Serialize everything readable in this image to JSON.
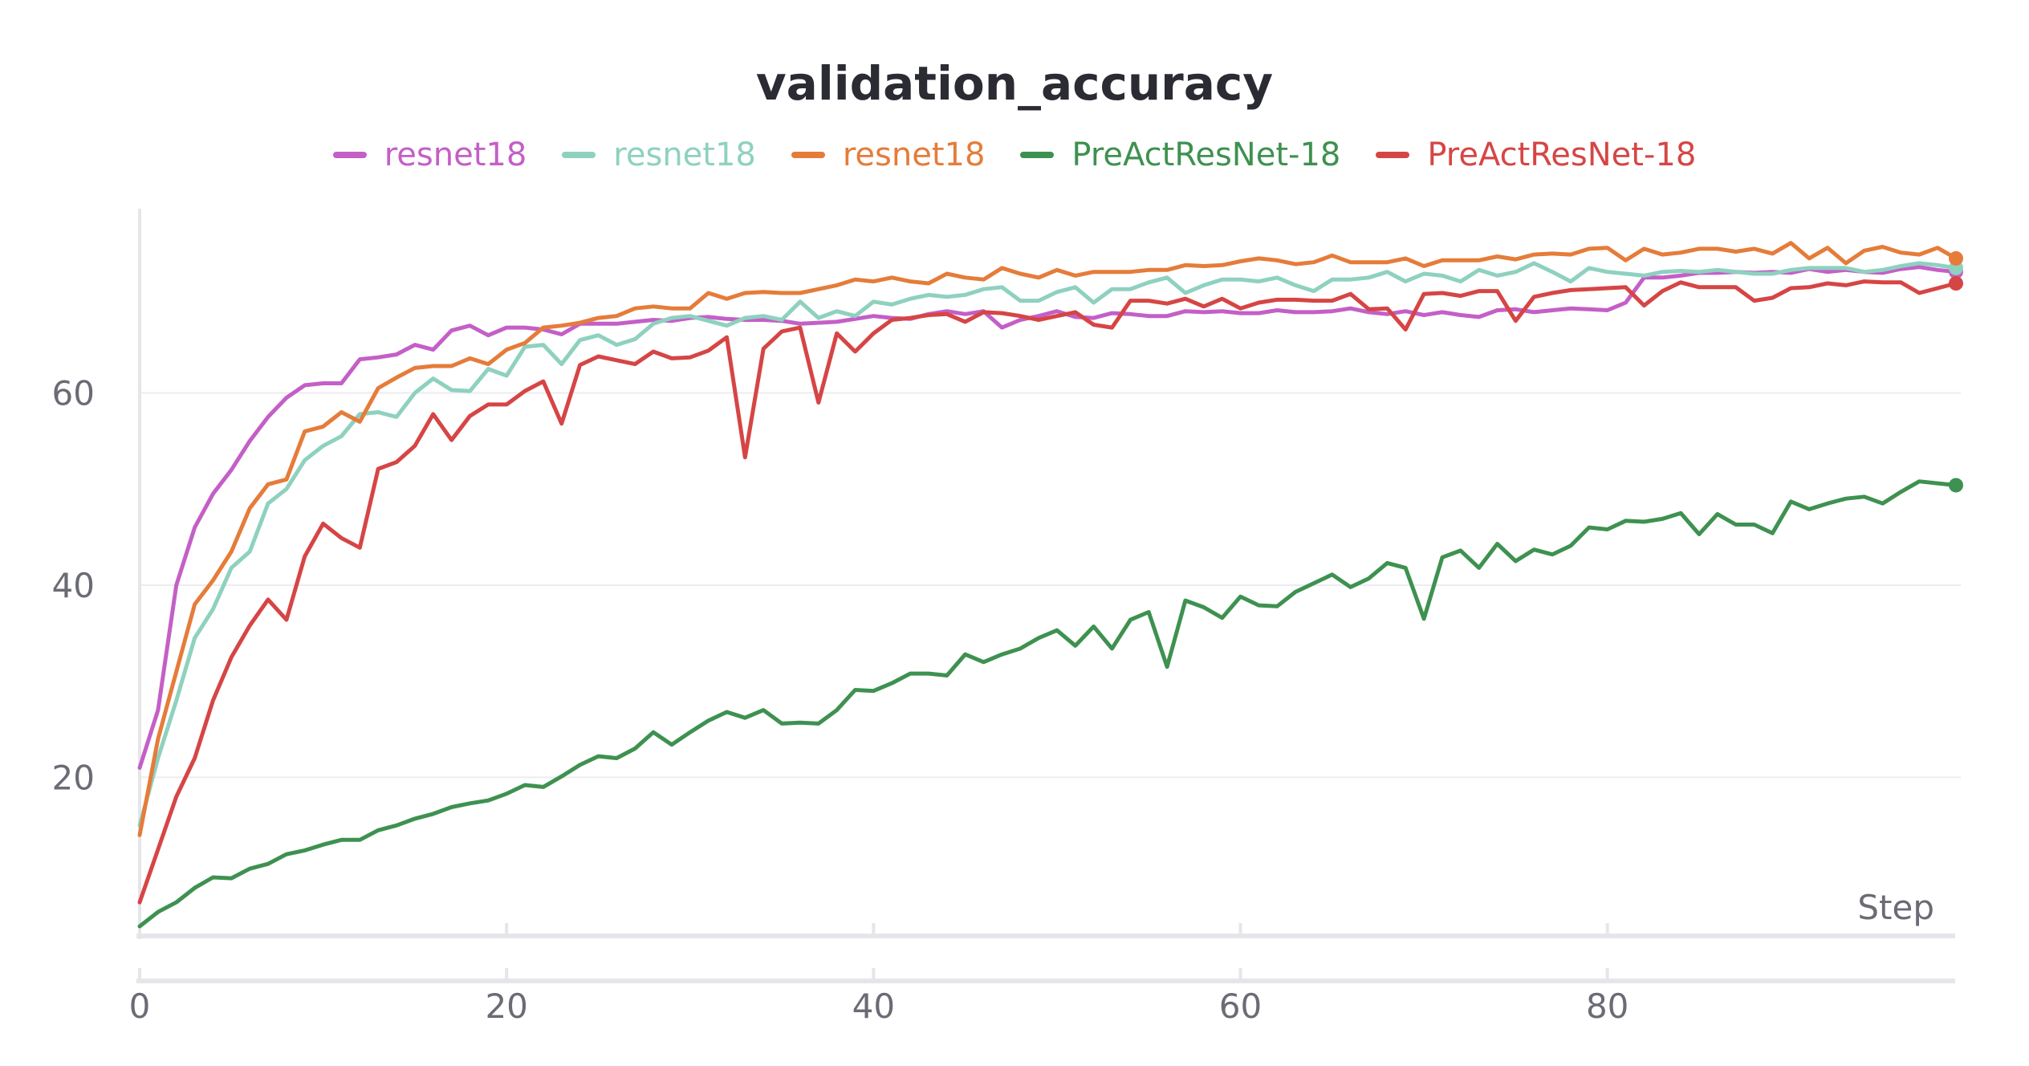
{
  "chart_data": {
    "type": "line",
    "title": "validation_accuracy",
    "xlabel": "Step",
    "ylabel": "",
    "xlim": [
      0,
      99
    ],
    "ylim": [
      4,
      78
    ],
    "xticks": [
      0,
      20,
      40,
      60,
      80
    ],
    "yticks": [
      20,
      40,
      60
    ],
    "grid": true,
    "legend_position": "top",
    "series": [
      {
        "name": "resnet18",
        "color": "#c45fc7",
        "values": [
          21,
          27,
          40,
          46,
          49.5,
          52,
          55,
          57.5,
          59.5,
          60.8,
          61,
          61,
          63.5,
          63.7,
          64,
          65,
          64.5,
          66.5,
          67,
          66,
          66.8,
          66.8,
          66.6,
          66.1,
          67.2,
          67.2,
          67.2,
          67.4,
          67.6,
          67.5,
          67.8,
          67.9,
          67.7,
          67.6,
          67.6,
          67.5,
          67.2,
          67.3,
          67.4,
          67.7,
          68,
          67.8,
          67.7,
          68.2,
          68.5,
          68.2,
          68.5,
          66.8,
          67.6,
          68,
          68.5,
          67.9,
          67.8,
          68.3,
          68.2,
          68,
          68,
          68.5,
          68.4,
          68.5,
          68.3,
          68.3,
          68.6,
          68.4,
          68.4,
          68.5,
          68.8,
          68.4,
          68.2,
          68.5,
          68.1,
          68.4,
          68.1,
          67.9,
          68.6,
          68.7,
          68.4,
          68.6,
          68.8,
          68.7,
          68.6,
          69.4,
          72,
          72,
          72.2,
          72.5,
          72.5,
          72.6,
          72.5,
          72.6,
          72.5,
          72.9,
          72.6,
          72.8,
          72.6,
          72.5,
          72.9,
          73.1,
          72.8,
          72.6
        ]
      },
      {
        "name": "resnet18",
        "color": "#8ed1bf",
        "values": [
          15,
          22,
          28,
          34.5,
          37.5,
          41.8,
          43.5,
          48.5,
          50,
          53,
          54.5,
          55.5,
          57.8,
          58,
          57.5,
          60,
          61.5,
          60.3,
          60.2,
          62.5,
          61.8,
          64.8,
          65,
          63,
          65.5,
          66,
          65,
          65.6,
          67.2,
          67.8,
          68,
          67.5,
          67,
          67.8,
          68,
          67.6,
          69.5,
          67.8,
          68.5,
          68,
          69.5,
          69.2,
          69.8,
          70.2,
          70,
          70.2,
          70.8,
          71,
          69.6,
          69.6,
          70.5,
          71,
          69.4,
          70.8,
          70.8,
          71.5,
          72,
          70.4,
          71.2,
          71.8,
          71.8,
          71.6,
          72,
          71.2,
          70.6,
          71.8,
          71.8,
          72,
          72.6,
          71.6,
          72.4,
          72.2,
          71.6,
          72.8,
          72.2,
          72.6,
          73.5,
          72.6,
          71.6,
          73,
          72.6,
          72.4,
          72.2,
          72.6,
          72.7,
          72.6,
          72.8,
          72.6,
          72.4,
          72.4,
          72.8,
          73,
          73,
          73,
          72.6,
          72.8,
          73.2,
          73.5,
          73.3,
          73
        ]
      },
      {
        "name": "resnet18",
        "color": "#e57c3a",
        "values": [
          14,
          24,
          31,
          38,
          40.5,
          43.5,
          48,
          50.5,
          51,
          56,
          56.5,
          58,
          57,
          60.5,
          61.6,
          62.6,
          62.8,
          62.8,
          63.6,
          63,
          64.5,
          65.2,
          66.8,
          67,
          67.3,
          67.8,
          68,
          68.8,
          69,
          68.8,
          68.8,
          70.4,
          69.8,
          70.4,
          70.5,
          70.4,
          70.4,
          70.8,
          71.2,
          71.8,
          71.6,
          72,
          71.6,
          71.4,
          72.4,
          72,
          71.8,
          73,
          72.4,
          72,
          72.8,
          72.2,
          72.6,
          72.6,
          72.6,
          72.8,
          72.8,
          73.3,
          73.2,
          73.3,
          73.7,
          74,
          73.8,
          73.4,
          73.6,
          74.3,
          73.6,
          73.6,
          73.6,
          74,
          73.2,
          73.8,
          73.8,
          73.8,
          74.2,
          73.9,
          74.4,
          74.5,
          74.4,
          75,
          75.1,
          73.8,
          75,
          74.4,
          74.6,
          75,
          75,
          74.7,
          75,
          74.5,
          75.6,
          74,
          75.1,
          73.5,
          74.8,
          75.2,
          74.6,
          74.4,
          75.1,
          74
        ]
      },
      {
        "name": "PreActResNet-18",
        "color": "#3e9150",
        "values": [
          4.5,
          6,
          7,
          8.5,
          9.6,
          9.5,
          10.5,
          11,
          12,
          12.4,
          13,
          13.5,
          13.5,
          14.5,
          15,
          15.7,
          16.2,
          16.9,
          17.3,
          17.6,
          18.3,
          19.2,
          19,
          20.1,
          21.3,
          22.2,
          22,
          23,
          24.7,
          23.4,
          24.7,
          25.9,
          26.8,
          26.2,
          27,
          25.6,
          25.7,
          25.6,
          27,
          29.1,
          29,
          29.8,
          30.8,
          30.8,
          30.6,
          32.8,
          32,
          32.8,
          33.4,
          34.5,
          35.3,
          33.7,
          35.7,
          33.4,
          36.4,
          37.2,
          31.5,
          38.4,
          37.7,
          36.6,
          38.8,
          37.9,
          37.8,
          39.3,
          40.2,
          41.1,
          39.8,
          40.7,
          42.3,
          41.8,
          36.5,
          42.9,
          43.6,
          41.8,
          44.3,
          42.5,
          43.7,
          43.2,
          44.1,
          46,
          45.8,
          46.7,
          46.6,
          46.9,
          47.5,
          45.3,
          47.4,
          46.3,
          46.3,
          45.4,
          48.7,
          47.9,
          48.5,
          49,
          49.2,
          48.5,
          49.7,
          50.8,
          50.6,
          50.4
        ]
      },
      {
        "name": "PreActResNet-18",
        "color": "#d64545",
        "values": [
          7,
          12.5,
          18,
          22,
          28,
          32.5,
          35.8,
          38.5,
          36.4,
          43,
          46.4,
          44.9,
          43.9,
          52.1,
          52.8,
          54.5,
          57.8,
          55.1,
          57.6,
          58.8,
          58.8,
          60.2,
          61.2,
          56.8,
          62.9,
          63.8,
          63.4,
          63,
          64.3,
          63.6,
          63.7,
          64.4,
          65.8,
          53.3,
          64.6,
          66.4,
          66.8,
          59,
          66.2,
          64.3,
          66.2,
          67.6,
          67.8,
          68.1,
          68.2,
          67.4,
          68.4,
          68.3,
          68,
          67.6,
          68,
          68.4,
          67.1,
          66.8,
          69.6,
          69.6,
          69.3,
          69.8,
          69,
          69.8,
          68.8,
          69.4,
          69.7,
          69.7,
          69.6,
          69.6,
          70.3,
          68.7,
          68.8,
          66.6,
          70.3,
          70.4,
          70.1,
          70.6,
          70.6,
          67.5,
          70,
          70.4,
          70.7,
          70.8,
          70.9,
          71,
          69.1,
          70.6,
          71.5,
          71,
          71,
          71,
          69.6,
          69.9,
          70.9,
          71,
          71.4,
          71.2,
          71.6,
          71.5,
          71.5,
          70.4,
          70.9,
          71.4
        ]
      }
    ]
  }
}
